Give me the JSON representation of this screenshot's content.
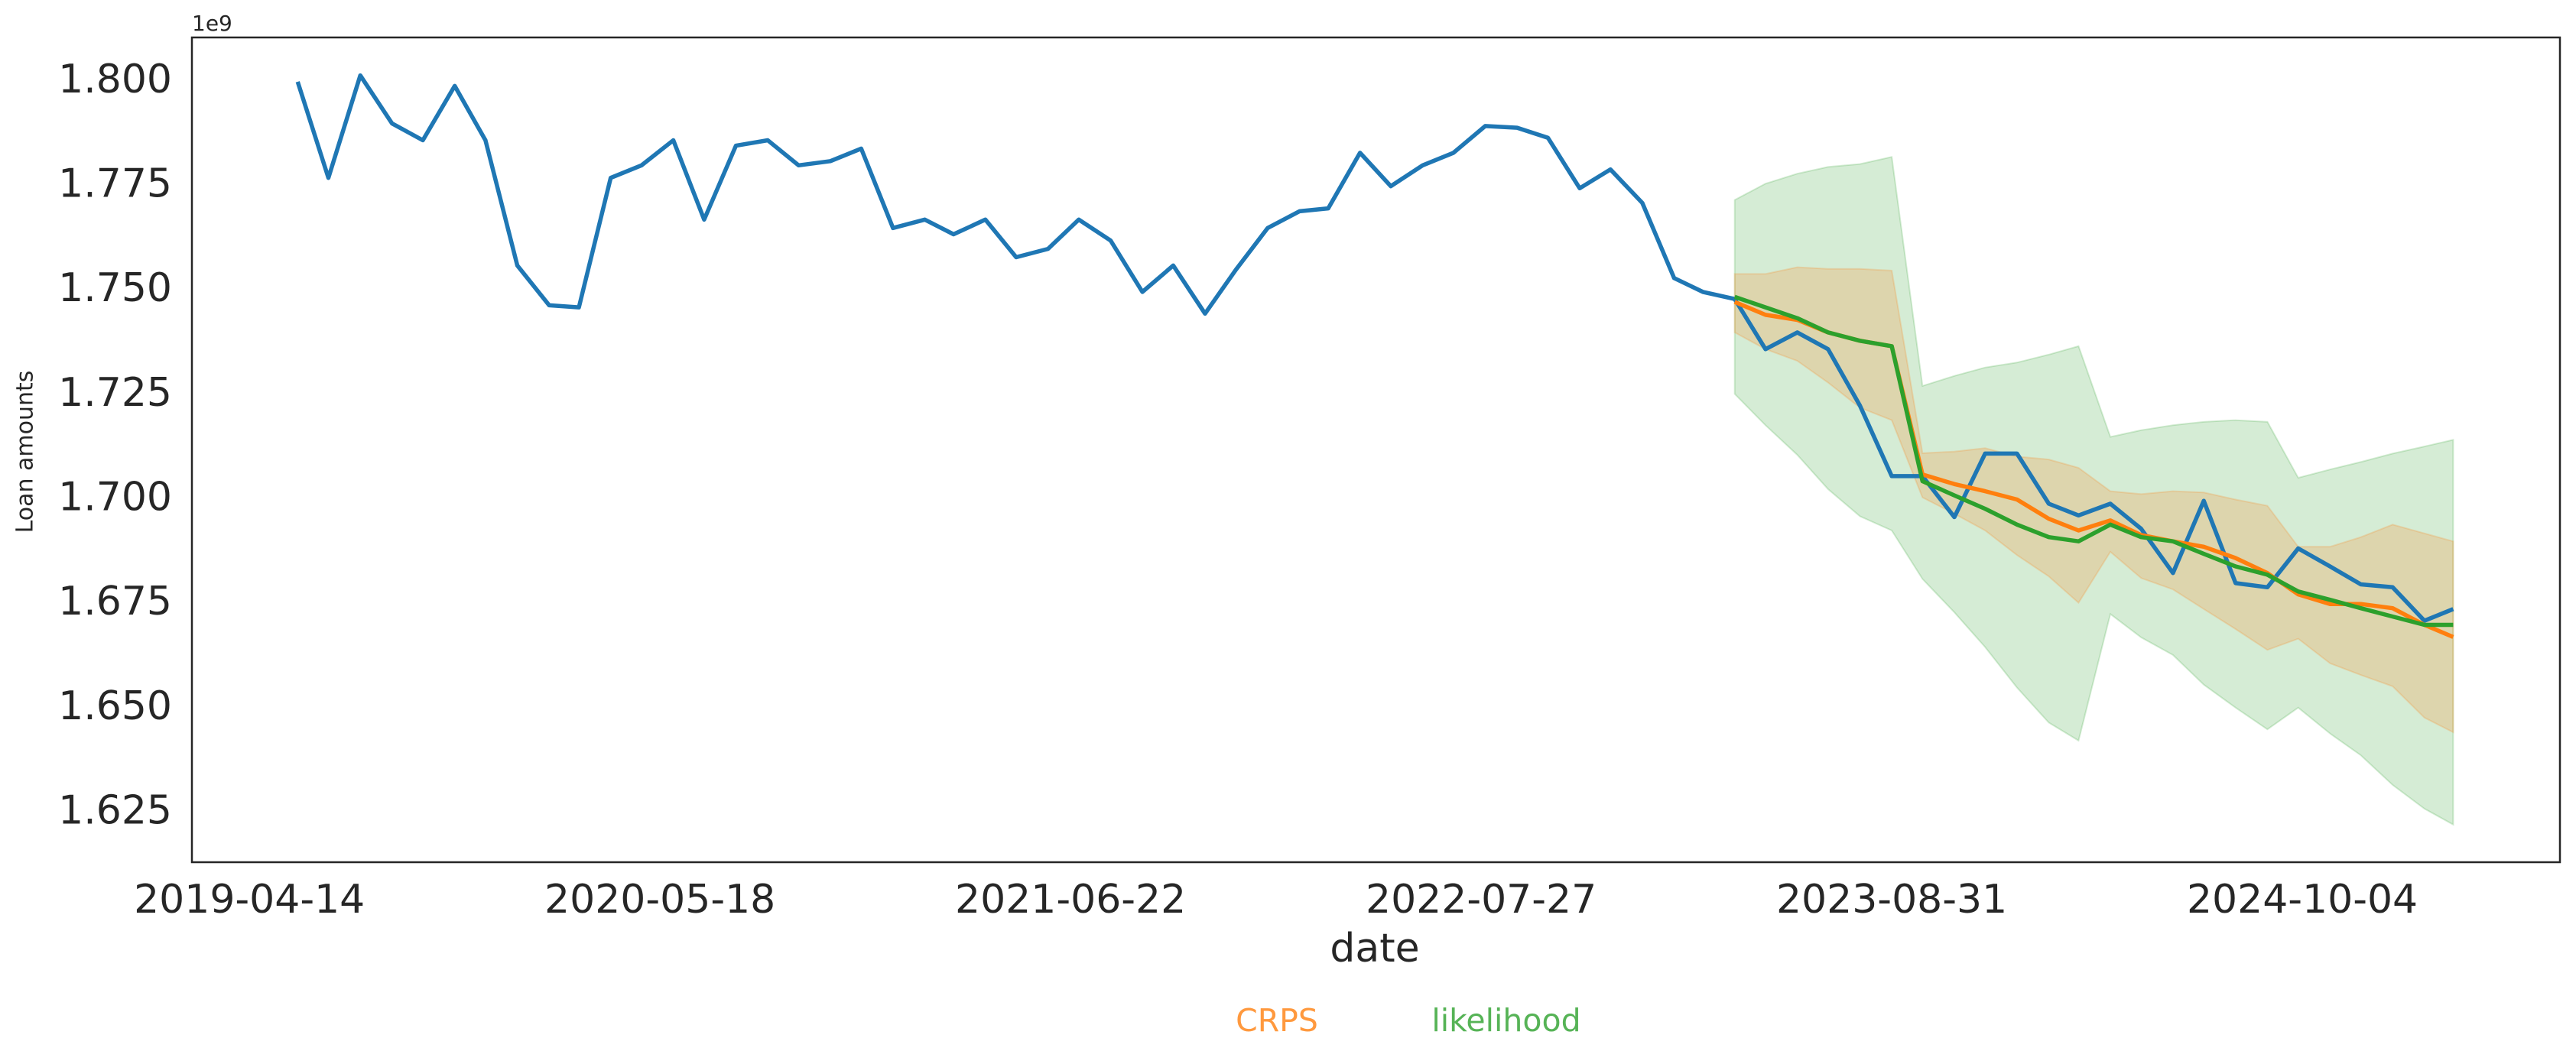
{
  "chart_data": {
    "type": "line",
    "offset_label": "1e9",
    "ylabel": "Loan amounts",
    "xlabel": "date",
    "x": [
      "2019-05-31",
      "2019-06-30",
      "2019-07-31",
      "2019-08-31",
      "2019-09-30",
      "2019-10-31",
      "2019-11-30",
      "2019-12-31",
      "2020-01-31",
      "2020-02-29",
      "2020-03-31",
      "2020-04-30",
      "2020-05-31",
      "2020-06-30",
      "2020-07-31",
      "2020-08-31",
      "2020-09-30",
      "2020-10-31",
      "2020-11-30",
      "2020-12-31",
      "2021-01-31",
      "2021-02-28",
      "2021-03-31",
      "2021-04-30",
      "2021-05-31",
      "2021-06-30",
      "2021-07-31",
      "2021-08-31",
      "2021-09-30",
      "2021-10-31",
      "2021-11-30",
      "2021-12-31",
      "2022-01-31",
      "2022-02-28",
      "2022-03-31",
      "2022-04-30",
      "2022-05-31",
      "2022-06-30",
      "2022-07-31",
      "2022-08-31",
      "2022-09-30",
      "2022-10-31",
      "2022-11-30",
      "2022-12-31",
      "2023-01-31",
      "2023-02-28",
      "2023-03-31",
      "2023-04-30",
      "2023-05-31",
      "2023-06-30",
      "2023-07-31",
      "2023-08-31",
      "2023-09-30",
      "2023-10-31",
      "2023-11-30",
      "2023-12-31",
      "2024-01-31",
      "2024-02-29",
      "2024-03-31",
      "2024-04-30",
      "2024-05-31",
      "2024-06-30",
      "2024-07-31",
      "2024-08-31",
      "2024-09-30",
      "2024-10-31",
      "2024-11-30",
      "2024-12-31",
      "2025-01-31",
      "2025-02-28"
    ],
    "series": [
      {
        "color": "#1f77b4",
        "values": [
          1.8,
          1.777,
          1.8015,
          1.79,
          1.786,
          1.799,
          1.786,
          1.756,
          1.7465,
          1.746,
          1.777,
          1.78,
          1.786,
          1.767,
          1.7847,
          1.786,
          1.78,
          1.781,
          1.784,
          1.765,
          1.767,
          1.7635,
          1.767,
          1.758,
          1.76,
          1.767,
          1.762,
          1.7497,
          1.756,
          1.7445,
          1.755,
          1.765,
          1.769,
          1.7697,
          1.783,
          1.775,
          1.78,
          1.783,
          1.7894,
          1.789,
          1.7866,
          1.7745,
          1.779,
          1.771,
          1.753,
          1.7497,
          1.748,
          1.736,
          1.74,
          1.736,
          1.7225,
          1.7056,
          1.7056,
          1.6958,
          1.711,
          1.711,
          1.699,
          1.6962,
          1.699,
          1.693,
          1.6824,
          1.6997,
          1.68,
          1.679,
          1.6883,
          1.684,
          1.6797,
          1.679,
          1.671,
          1.6738
        ]
      },
      {
        "name": "CRPS",
        "color": "#ff7f0e",
        "band_opacity": 0.2,
        "values": [
          null,
          null,
          null,
          null,
          null,
          null,
          null,
          null,
          null,
          null,
          null,
          null,
          null,
          null,
          null,
          null,
          null,
          null,
          null,
          null,
          null,
          null,
          null,
          null,
          null,
          null,
          null,
          null,
          null,
          null,
          null,
          null,
          null,
          null,
          null,
          null,
          null,
          null,
          null,
          null,
          null,
          null,
          null,
          null,
          null,
          null,
          1.7473,
          1.7442,
          1.743,
          1.74,
          1.738,
          1.7367,
          1.706,
          1.7037,
          1.702,
          1.7,
          1.6954,
          1.6926,
          1.695,
          1.6915,
          1.69,
          1.6887,
          1.686,
          1.6824,
          1.6773,
          1.675,
          1.675,
          1.674,
          1.67,
          1.6671
        ],
        "upper": [
          null,
          null,
          null,
          null,
          null,
          null,
          null,
          null,
          null,
          null,
          null,
          null,
          null,
          null,
          null,
          null,
          null,
          null,
          null,
          null,
          null,
          null,
          null,
          null,
          null,
          null,
          null,
          null,
          null,
          null,
          null,
          null,
          null,
          null,
          null,
          null,
          null,
          null,
          null,
          null,
          null,
          null,
          null,
          null,
          null,
          null,
          1.754,
          1.754,
          1.7556,
          1.7552,
          1.7552,
          1.7548,
          1.7111,
          1.7115,
          1.7123,
          1.7103,
          1.7096,
          1.7076,
          1.702,
          1.7013,
          1.702,
          1.7017,
          1.7,
          1.6985,
          1.6887,
          1.6887,
          1.691,
          1.694,
          1.6919,
          1.69
        ],
        "lower": [
          null,
          null,
          null,
          null,
          null,
          null,
          null,
          null,
          null,
          null,
          null,
          null,
          null,
          null,
          null,
          null,
          null,
          null,
          null,
          null,
          null,
          null,
          null,
          null,
          null,
          null,
          null,
          null,
          null,
          null,
          null,
          null,
          null,
          null,
          null,
          null,
          null,
          null,
          null,
          null,
          null,
          null,
          null,
          null,
          null,
          null,
          1.74,
          1.736,
          1.7332,
          1.728,
          1.722,
          1.719,
          1.7005,
          1.6966,
          1.6926,
          1.6867,
          1.6816,
          1.6753,
          1.6875,
          1.6812,
          1.6785,
          1.6738,
          1.669,
          1.664,
          1.6667,
          1.6608,
          1.658,
          1.6553,
          1.6478,
          1.6443
        ]
      },
      {
        "name": "likelihood",
        "color": "#2ca02c",
        "band_opacity": 0.2,
        "values": [
          null,
          null,
          null,
          null,
          null,
          null,
          null,
          null,
          null,
          null,
          null,
          null,
          null,
          null,
          null,
          null,
          null,
          null,
          null,
          null,
          null,
          null,
          null,
          null,
          null,
          null,
          null,
          null,
          null,
          null,
          null,
          null,
          null,
          null,
          null,
          null,
          null,
          null,
          null,
          null,
          null,
          null,
          null,
          null,
          null,
          null,
          1.7485,
          1.746,
          1.7434,
          1.74,
          1.738,
          1.7367,
          1.7044,
          1.701,
          1.6978,
          1.694,
          1.691,
          1.69,
          1.694,
          1.691,
          1.69,
          1.687,
          1.684,
          1.682,
          1.678,
          1.676,
          1.674,
          1.672,
          1.67,
          1.67
        ],
        "upper": [
          null,
          null,
          null,
          null,
          null,
          null,
          null,
          null,
          null,
          null,
          null,
          null,
          null,
          null,
          null,
          null,
          null,
          null,
          null,
          null,
          null,
          null,
          null,
          null,
          null,
          null,
          null,
          null,
          null,
          null,
          null,
          null,
          null,
          null,
          null,
          null,
          null,
          null,
          null,
          null,
          null,
          null,
          null,
          null,
          null,
          null,
          1.7717,
          1.7756,
          1.778,
          1.7796,
          1.7803,
          1.782,
          1.7272,
          1.7296,
          1.7316,
          1.7328,
          1.7347,
          1.7367,
          1.715,
          1.7166,
          1.7178,
          1.7186,
          1.719,
          1.7186,
          1.7052,
          1.7072,
          1.709,
          1.711,
          1.7127,
          1.7143
        ],
        "lower": [
          null,
          null,
          null,
          null,
          null,
          null,
          null,
          null,
          null,
          null,
          null,
          null,
          null,
          null,
          null,
          null,
          null,
          null,
          null,
          null,
          null,
          null,
          null,
          null,
          null,
          null,
          null,
          null,
          null,
          null,
          null,
          null,
          null,
          null,
          null,
          null,
          null,
          null,
          null,
          null,
          null,
          null,
          null,
          null,
          null,
          null,
          1.7253,
          1.7178,
          1.7107,
          1.7025,
          1.696,
          1.6926,
          1.681,
          1.673,
          1.6647,
          1.655,
          1.6466,
          1.6423,
          1.6726,
          1.667,
          1.6628,
          1.6557,
          1.6502,
          1.645,
          1.6502,
          1.644,
          1.6388,
          1.6317,
          1.626,
          1.6222
        ]
      }
    ],
    "xlim": [
      "2019-02-17",
      "2025-06-12"
    ],
    "xticks": [
      "2019-04-14",
      "2020-05-18",
      "2021-06-22",
      "2022-07-27",
      "2023-08-31",
      "2024-10-04"
    ],
    "ylim": [
      1.6132,
      1.8106
    ],
    "yticks": [
      {
        "value": 1.625,
        "label": "1.625"
      },
      {
        "value": 1.65,
        "label": "1.650"
      },
      {
        "value": 1.675,
        "label": "1.675"
      },
      {
        "value": 1.7,
        "label": "1.700"
      },
      {
        "value": 1.725,
        "label": "1.725"
      },
      {
        "value": 1.75,
        "label": "1.750"
      },
      {
        "value": 1.775,
        "label": "1.775"
      },
      {
        "value": 1.8,
        "label": "1.800"
      }
    ],
    "grid": false
  }
}
